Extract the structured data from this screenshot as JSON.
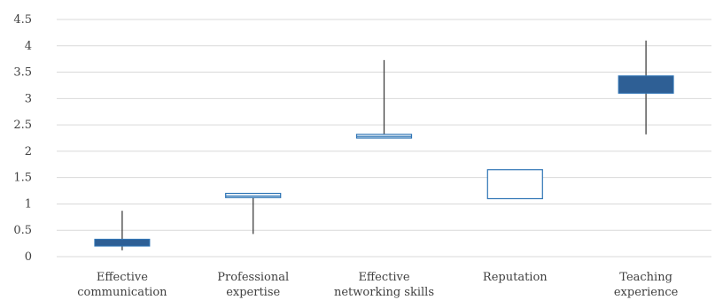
{
  "chart_data": {
    "type": "box",
    "title": "",
    "xlabel": "",
    "ylabel": "",
    "ylim": [
      0,
      4.5
    ],
    "yticks": [
      "0",
      "0.5",
      "1",
      "1.5",
      "2",
      "2.5",
      "3",
      "3.5",
      "4",
      "4.5"
    ],
    "ytick_values": [
      0,
      0.5,
      1,
      1.5,
      2,
      2.5,
      3,
      3.5,
      4,
      4.5
    ],
    "grid": true,
    "categories": [
      [
        "Effective",
        "communication"
      ],
      [
        "Professional",
        "expertise"
      ],
      [
        "Effective",
        "networking skills"
      ],
      [
        "Reputation"
      ],
      [
        "Teaching",
        "experience"
      ]
    ],
    "boxes": [
      {
        "whisker_low": 0.12,
        "box_low": 0.2,
        "mid": 0.27,
        "box_high": 0.33,
        "whisker_high": 0.87,
        "style": "filled"
      },
      {
        "whisker_low": 0.43,
        "box_low": 1.12,
        "mid": 1.15,
        "box_high": 1.2,
        "whisker_high": 1.1,
        "style": "hollow"
      },
      {
        "whisker_low": 2.25,
        "box_low": 2.25,
        "mid": 2.28,
        "box_high": 2.32,
        "whisker_high": 3.73,
        "style": "hollow"
      },
      {
        "whisker_low": 1.1,
        "box_low": 1.1,
        "mid": 1.65,
        "box_high": 1.65,
        "whisker_high": 1.65,
        "style": "hollow"
      },
      {
        "whisker_low": 2.32,
        "box_low": 3.1,
        "mid": 3.26,
        "box_high": 3.43,
        "whisker_high": 4.1,
        "style": "filled"
      }
    ],
    "colors": {
      "filled": "#2e5f95",
      "stroke": "#2e74b5",
      "whisker": "#404040",
      "grid": "#d9d9d9"
    }
  }
}
